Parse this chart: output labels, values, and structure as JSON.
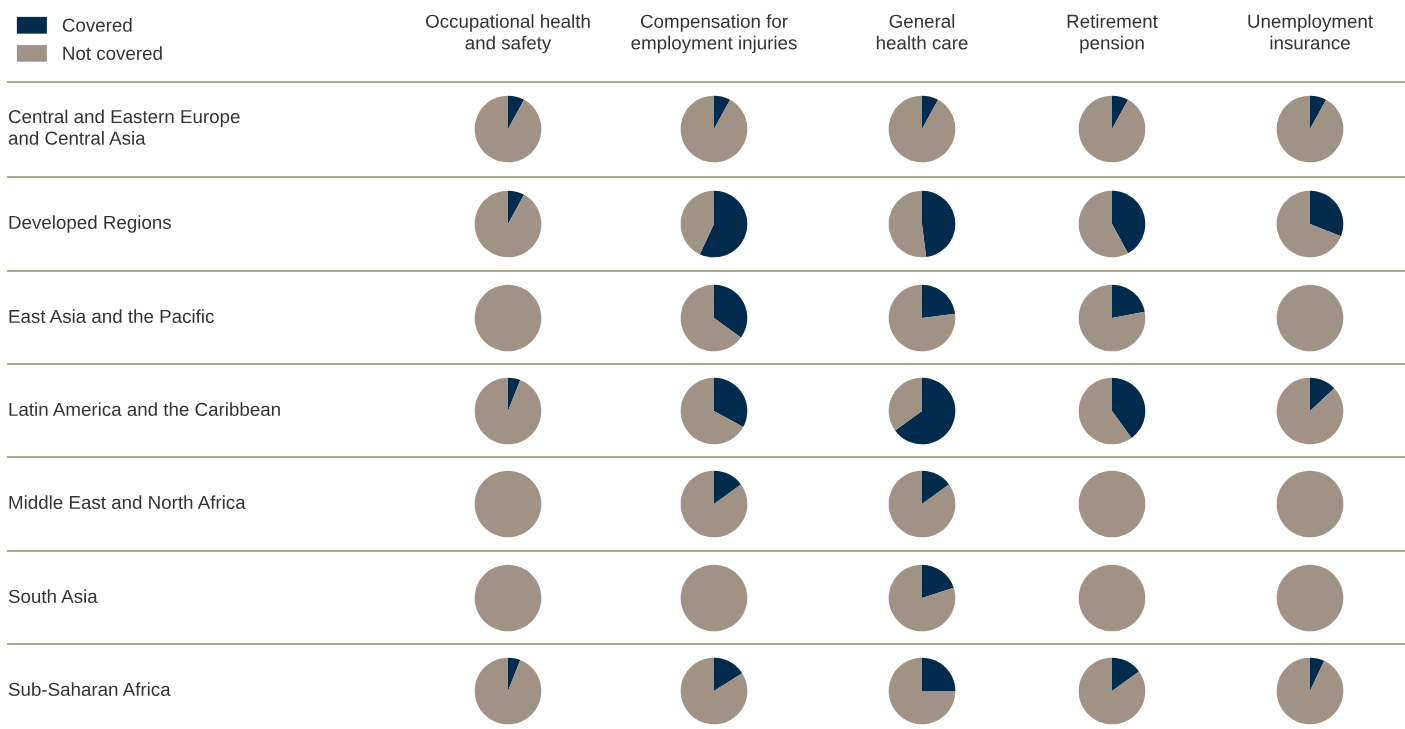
{
  "chart_data": [
    {
      "type": "pie",
      "title": "Occupational health\nand safety",
      "ylabel": "Central and Eastern Europe\nand Central Asia",
      "legend": "top left",
      "categories": [
        "Covered",
        "Not covered"
      ],
      "values": [
        8,
        92
      ],
      "colors": [
        "#002b4d",
        "#a09385"
      ]
    },
    {
      "type": "pie",
      "title": "Compensation for\nemployment injuries",
      "values": [
        8,
        92
      ],
      "colors": [
        "#002b4d",
        "#a09385"
      ]
    },
    {
      "type": "pie",
      "title": "General\nhealth care",
      "values": [
        8,
        92
      ],
      "colors": [
        "#002b4d",
        "#a09385"
      ]
    },
    {
      "type": "pie",
      "title": "Retirement\npension",
      "values": [
        8,
        92
      ],
      "colors": [
        "#002b4d",
        "#a09385"
      ]
    },
    {
      "type": "pie",
      "title": "Unemployment\ninsurance",
      "values": [
        8,
        92
      ],
      "colors": [
        "#002b4d",
        "#a09385"
      ]
    },
    {
      "type": "pie",
      "ylabel": "Developed Regions",
      "values": [
        8,
        92
      ],
      "colors": [
        "#002b4d",
        "#a09385"
      ]
    },
    {
      "type": "pie",
      "values": [
        57,
        43
      ],
      "colors": [
        "#002b4d",
        "#a09385"
      ]
    },
    {
      "type": "pie",
      "values": [
        48,
        52
      ],
      "colors": [
        "#002b4d",
        "#a09385"
      ]
    },
    {
      "type": "pie",
      "values": [
        42,
        58
      ],
      "colors": [
        "#002b4d",
        "#a09385"
      ]
    },
    {
      "type": "pie",
      "values": [
        31,
        69
      ],
      "colors": [
        "#002b4d",
        "#a09385"
      ]
    },
    {
      "type": "pie",
      "ylabel": "East Asia and the Pacific",
      "values": [
        0,
        100
      ],
      "colors": [
        "#002b4d",
        "#a09385"
      ]
    },
    {
      "type": "pie",
      "values": [
        35,
        65
      ],
      "colors": [
        "#002b4d",
        "#a09385"
      ]
    },
    {
      "type": "pie",
      "values": [
        23,
        77
      ],
      "colors": [
        "#002b4d",
        "#a09385"
      ]
    },
    {
      "type": "pie",
      "values": [
        22,
        78
      ],
      "colors": [
        "#002b4d",
        "#a09385"
      ]
    },
    {
      "type": "pie",
      "values": [
        0,
        100
      ],
      "colors": [
        "#002b4d",
        "#a09385"
      ]
    },
    {
      "type": "pie",
      "ylabel": "Latin America and the Caribbean",
      "values": [
        6,
        94
      ],
      "colors": [
        "#002b4d",
        "#a09385"
      ]
    },
    {
      "type": "pie",
      "values": [
        33,
        67
      ],
      "colors": [
        "#002b4d",
        "#a09385"
      ]
    },
    {
      "type": "pie",
      "values": [
        65,
        35
      ],
      "colors": [
        "#002b4d",
        "#a09385"
      ]
    },
    {
      "type": "pie",
      "values": [
        40,
        60
      ],
      "colors": [
        "#002b4d",
        "#a09385"
      ]
    },
    {
      "type": "pie",
      "values": [
        13,
        87
      ],
      "colors": [
        "#002b4d",
        "#a09385"
      ]
    },
    {
      "type": "pie",
      "ylabel": "Middle East and North Africa",
      "values": [
        0,
        100
      ],
      "colors": [
        "#002b4d",
        "#a09385"
      ]
    },
    {
      "type": "pie",
      "values": [
        15,
        85
      ],
      "colors": [
        "#002b4d",
        "#a09385"
      ]
    },
    {
      "type": "pie",
      "values": [
        15,
        85
      ],
      "colors": [
        "#002b4d",
        "#a09385"
      ]
    },
    {
      "type": "pie",
      "values": [
        0,
        100
      ],
      "colors": [
        "#002b4d",
        "#a09385"
      ]
    },
    {
      "type": "pie",
      "values": [
        0,
        100
      ],
      "colors": [
        "#002b4d",
        "#a09385"
      ]
    },
    {
      "type": "pie",
      "ylabel": "South Asia",
      "values": [
        0,
        100
      ],
      "colors": [
        "#002b4d",
        "#a09385"
      ]
    },
    {
      "type": "pie",
      "values": [
        0,
        100
      ],
      "colors": [
        "#002b4d",
        "#a09385"
      ]
    },
    {
      "type": "pie",
      "values": [
        20,
        80
      ],
      "colors": [
        "#002b4d",
        "#a09385"
      ]
    },
    {
      "type": "pie",
      "values": [
        0,
        100
      ],
      "colors": [
        "#002b4d",
        "#a09385"
      ]
    },
    {
      "type": "pie",
      "values": [
        0,
        100
      ],
      "colors": [
        "#002b4d",
        "#a09385"
      ]
    },
    {
      "type": "pie",
      "ylabel": "Sub-Saharan Africa",
      "values": [
        6,
        94
      ],
      "colors": [
        "#002b4d",
        "#a09385"
      ]
    },
    {
      "type": "pie",
      "values": [
        16,
        84
      ],
      "colors": [
        "#002b4d",
        "#a09385"
      ]
    },
    {
      "type": "pie",
      "values": [
        25,
        75
      ],
      "colors": [
        "#002b4d",
        "#a09385"
      ]
    },
    {
      "type": "pie",
      "values": [
        15,
        85
      ],
      "colors": [
        "#002b4d",
        "#a09385"
      ]
    },
    {
      "type": "pie",
      "values": [
        7,
        93
      ],
      "colors": [
        "#002b4d",
        "#a09385"
      ]
    }
  ]
}
